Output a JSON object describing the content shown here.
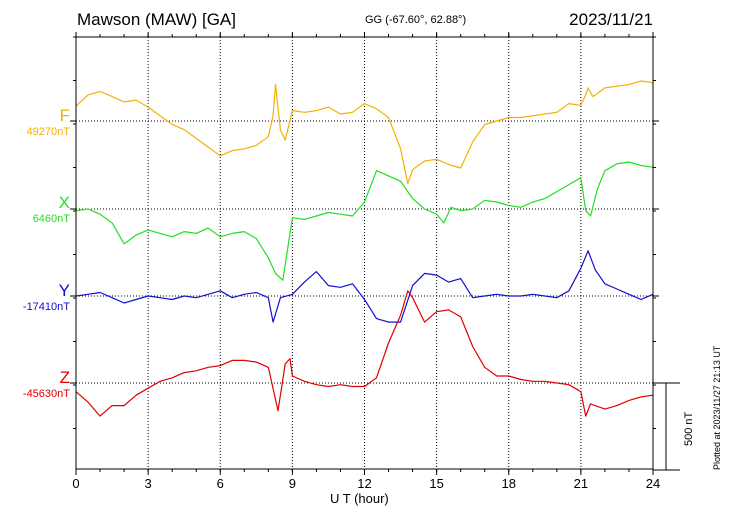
{
  "header": {
    "title": "Mawson (MAW)  [GA]",
    "coords": "GG (-67.60°,  62.88°)",
    "date": "2023/11/21"
  },
  "footer": {
    "plotted": "Plotted at 2023/11/27 21:13 UT",
    "scale": "500 nT"
  },
  "chart_data": {
    "type": "line",
    "xlabel": "U T (hour)",
    "xlim": [
      0,
      24
    ],
    "xticks": [
      0,
      3,
      6,
      9,
      12,
      15,
      18,
      21,
      24
    ],
    "grid": true,
    "scale_bar_nT": 500,
    "series": [
      {
        "name": "F",
        "baseline_label": "49270nT",
        "baseline": 49270,
        "color": "#f5b000",
        "x": [
          0,
          0.5,
          1,
          1.5,
          2,
          2.5,
          3,
          3.5,
          4,
          4.5,
          5,
          5.5,
          6,
          6.5,
          7,
          7.5,
          8,
          8.2,
          8.3,
          8.5,
          8.7,
          9,
          9.5,
          10,
          10.5,
          11,
          11.5,
          12,
          12.5,
          13,
          13.5,
          13.8,
          14,
          14.5,
          15,
          15.5,
          16,
          16.5,
          17,
          17.5,
          18,
          18.5,
          19,
          19.5,
          20,
          20.5,
          21,
          21.2,
          21.3,
          21.5,
          22,
          22.5,
          23,
          23.5,
          24
        ],
        "y": [
          49355,
          49420,
          49440,
          49410,
          49380,
          49390,
          49350,
          49300,
          49250,
          49220,
          49170,
          49120,
          49070,
          49100,
          49110,
          49130,
          49180,
          49300,
          49480,
          49220,
          49160,
          49330,
          49320,
          49330,
          49350,
          49310,
          49320,
          49370,
          49340,
          49290,
          49110,
          48910,
          48990,
          49040,
          49050,
          49020,
          49000,
          49150,
          49250,
          49270,
          49290,
          49290,
          49300,
          49310,
          49320,
          49370,
          49360,
          49420,
          49460,
          49410,
          49460,
          49470,
          49480,
          49500,
          49490
        ]
      },
      {
        "name": "X",
        "baseline_label": "6460nT",
        "baseline": 6460,
        "color": "#20e020",
        "x": [
          0,
          0.5,
          1,
          1.5,
          2,
          2.5,
          3,
          3.5,
          4,
          4.5,
          5,
          5.5,
          6,
          6.5,
          7,
          7.5,
          8,
          8.3,
          8.6,
          9,
          9.5,
          10,
          10.5,
          11,
          11.5,
          12,
          12.5,
          13,
          13.5,
          14,
          14.5,
          15,
          15.3,
          15.6,
          16,
          16.5,
          17,
          17.5,
          18,
          18.5,
          19,
          19.5,
          20,
          20.5,
          21,
          21.2,
          21.4,
          21.7,
          22,
          22.5,
          23,
          23.5,
          24
        ],
        "y": [
          6450,
          6460,
          6430,
          6380,
          6260,
          6310,
          6340,
          6320,
          6300,
          6330,
          6320,
          6350,
          6300,
          6320,
          6330,
          6290,
          6180,
          6090,
          6050,
          6410,
          6400,
          6420,
          6440,
          6430,
          6420,
          6500,
          6680,
          6650,
          6620,
          6520,
          6460,
          6430,
          6380,
          6470,
          6450,
          6460,
          6510,
          6500,
          6480,
          6470,
          6500,
          6520,
          6560,
          6600,
          6640,
          6450,
          6420,
          6580,
          6680,
          6720,
          6730,
          6710,
          6700
        ]
      },
      {
        "name": "Y",
        "baseline_label": "-17410nT",
        "baseline": -17410,
        "color": "#1010d0",
        "x": [
          0,
          0.5,
          1,
          1.5,
          2,
          2.5,
          3,
          3.5,
          4,
          4.5,
          5,
          5.5,
          6,
          6.5,
          7,
          7.5,
          8,
          8.2,
          8.5,
          9,
          9.5,
          10,
          10.5,
          11,
          11.5,
          12,
          12.5,
          13,
          13.5,
          14,
          14.5,
          15,
          15.5,
          16,
          16.5,
          17,
          17.5,
          18,
          18.5,
          19,
          19.5,
          20,
          20.5,
          21,
          21.3,
          21.6,
          22,
          22.5,
          23,
          23.5,
          24
        ],
        "y": [
          -17410,
          -17400,
          -17390,
          -17420,
          -17450,
          -17430,
          -17410,
          -17420,
          -17430,
          -17410,
          -17420,
          -17400,
          -17380,
          -17420,
          -17400,
          -17390,
          -17420,
          -17560,
          -17420,
          -17400,
          -17330,
          -17270,
          -17350,
          -17360,
          -17340,
          -17430,
          -17540,
          -17560,
          -17560,
          -17350,
          -17280,
          -17290,
          -17330,
          -17310,
          -17420,
          -17410,
          -17400,
          -17410,
          -17410,
          -17400,
          -17410,
          -17420,
          -17380,
          -17250,
          -17150,
          -17260,
          -17340,
          -17370,
          -17400,
          -17430,
          -17400
        ]
      },
      {
        "name": "Z",
        "baseline_label": "-45630nT",
        "baseline": -45630,
        "color": "#e00000",
        "x": [
          0,
          0.5,
          1,
          1.5,
          2,
          2.5,
          3,
          3.5,
          4,
          4.5,
          5,
          5.5,
          6,
          6.5,
          7,
          7.5,
          8,
          8.1,
          8.4,
          8.7,
          8.9,
          9,
          9.5,
          10,
          10.5,
          11,
          11.5,
          12,
          12.5,
          13,
          13.5,
          13.8,
          14,
          14.5,
          15,
          15.5,
          16,
          16.5,
          17,
          17.5,
          18,
          18.5,
          19,
          19.5,
          20,
          20.5,
          21,
          21.2,
          21.4,
          22,
          22.5,
          23,
          23.5,
          24
        ],
        "y": [
          -45680,
          -45740,
          -45820,
          -45760,
          -45760,
          -45700,
          -45660,
          -45620,
          -45600,
          -45570,
          -45560,
          -45540,
          -45530,
          -45500,
          -45500,
          -45510,
          -45540,
          -45600,
          -45790,
          -45520,
          -45490,
          -45590,
          -45620,
          -45640,
          -45650,
          -45640,
          -45650,
          -45650,
          -45600,
          -45400,
          -45240,
          -45100,
          -45140,
          -45280,
          -45220,
          -45210,
          -45250,
          -45420,
          -45540,
          -45590,
          -45590,
          -45610,
          -45620,
          -45620,
          -45630,
          -45640,
          -45680,
          -45820,
          -45750,
          -45780,
          -45760,
          -45730,
          -45710,
          -45700
        ]
      }
    ]
  }
}
